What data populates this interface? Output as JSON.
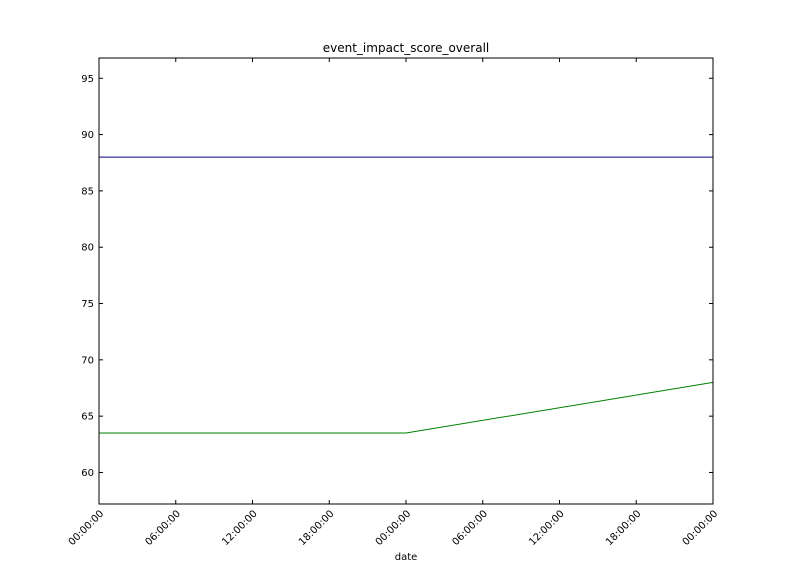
{
  "chart_data": {
    "type": "line",
    "title": "event_impact_score_overall",
    "xlabel": "date",
    "ylabel": "",
    "x_ticks": [
      "00:00:00",
      "06:00:00",
      "12:00:00",
      "18:00:00",
      "00:00:00",
      "06:00:00",
      "12:00:00",
      "18:00:00",
      "00:00:00"
    ],
    "x_tick_hours": [
      0,
      6,
      12,
      18,
      24,
      30,
      36,
      42,
      48
    ],
    "xlim_hours": [
      0,
      48
    ],
    "y_ticks": [
      60,
      65,
      70,
      75,
      80,
      85,
      90,
      95
    ],
    "ylim": [
      57.2,
      96.8
    ],
    "grid": false,
    "series": [
      {
        "color": "#000080",
        "x_hours": [
          0,
          24,
          48
        ],
        "values": [
          88,
          88,
          88
        ]
      },
      {
        "color": "#008000",
        "x_hours": [
          0,
          24,
          48
        ],
        "values": [
          63.5,
          63.5,
          68
        ]
      }
    ]
  }
}
